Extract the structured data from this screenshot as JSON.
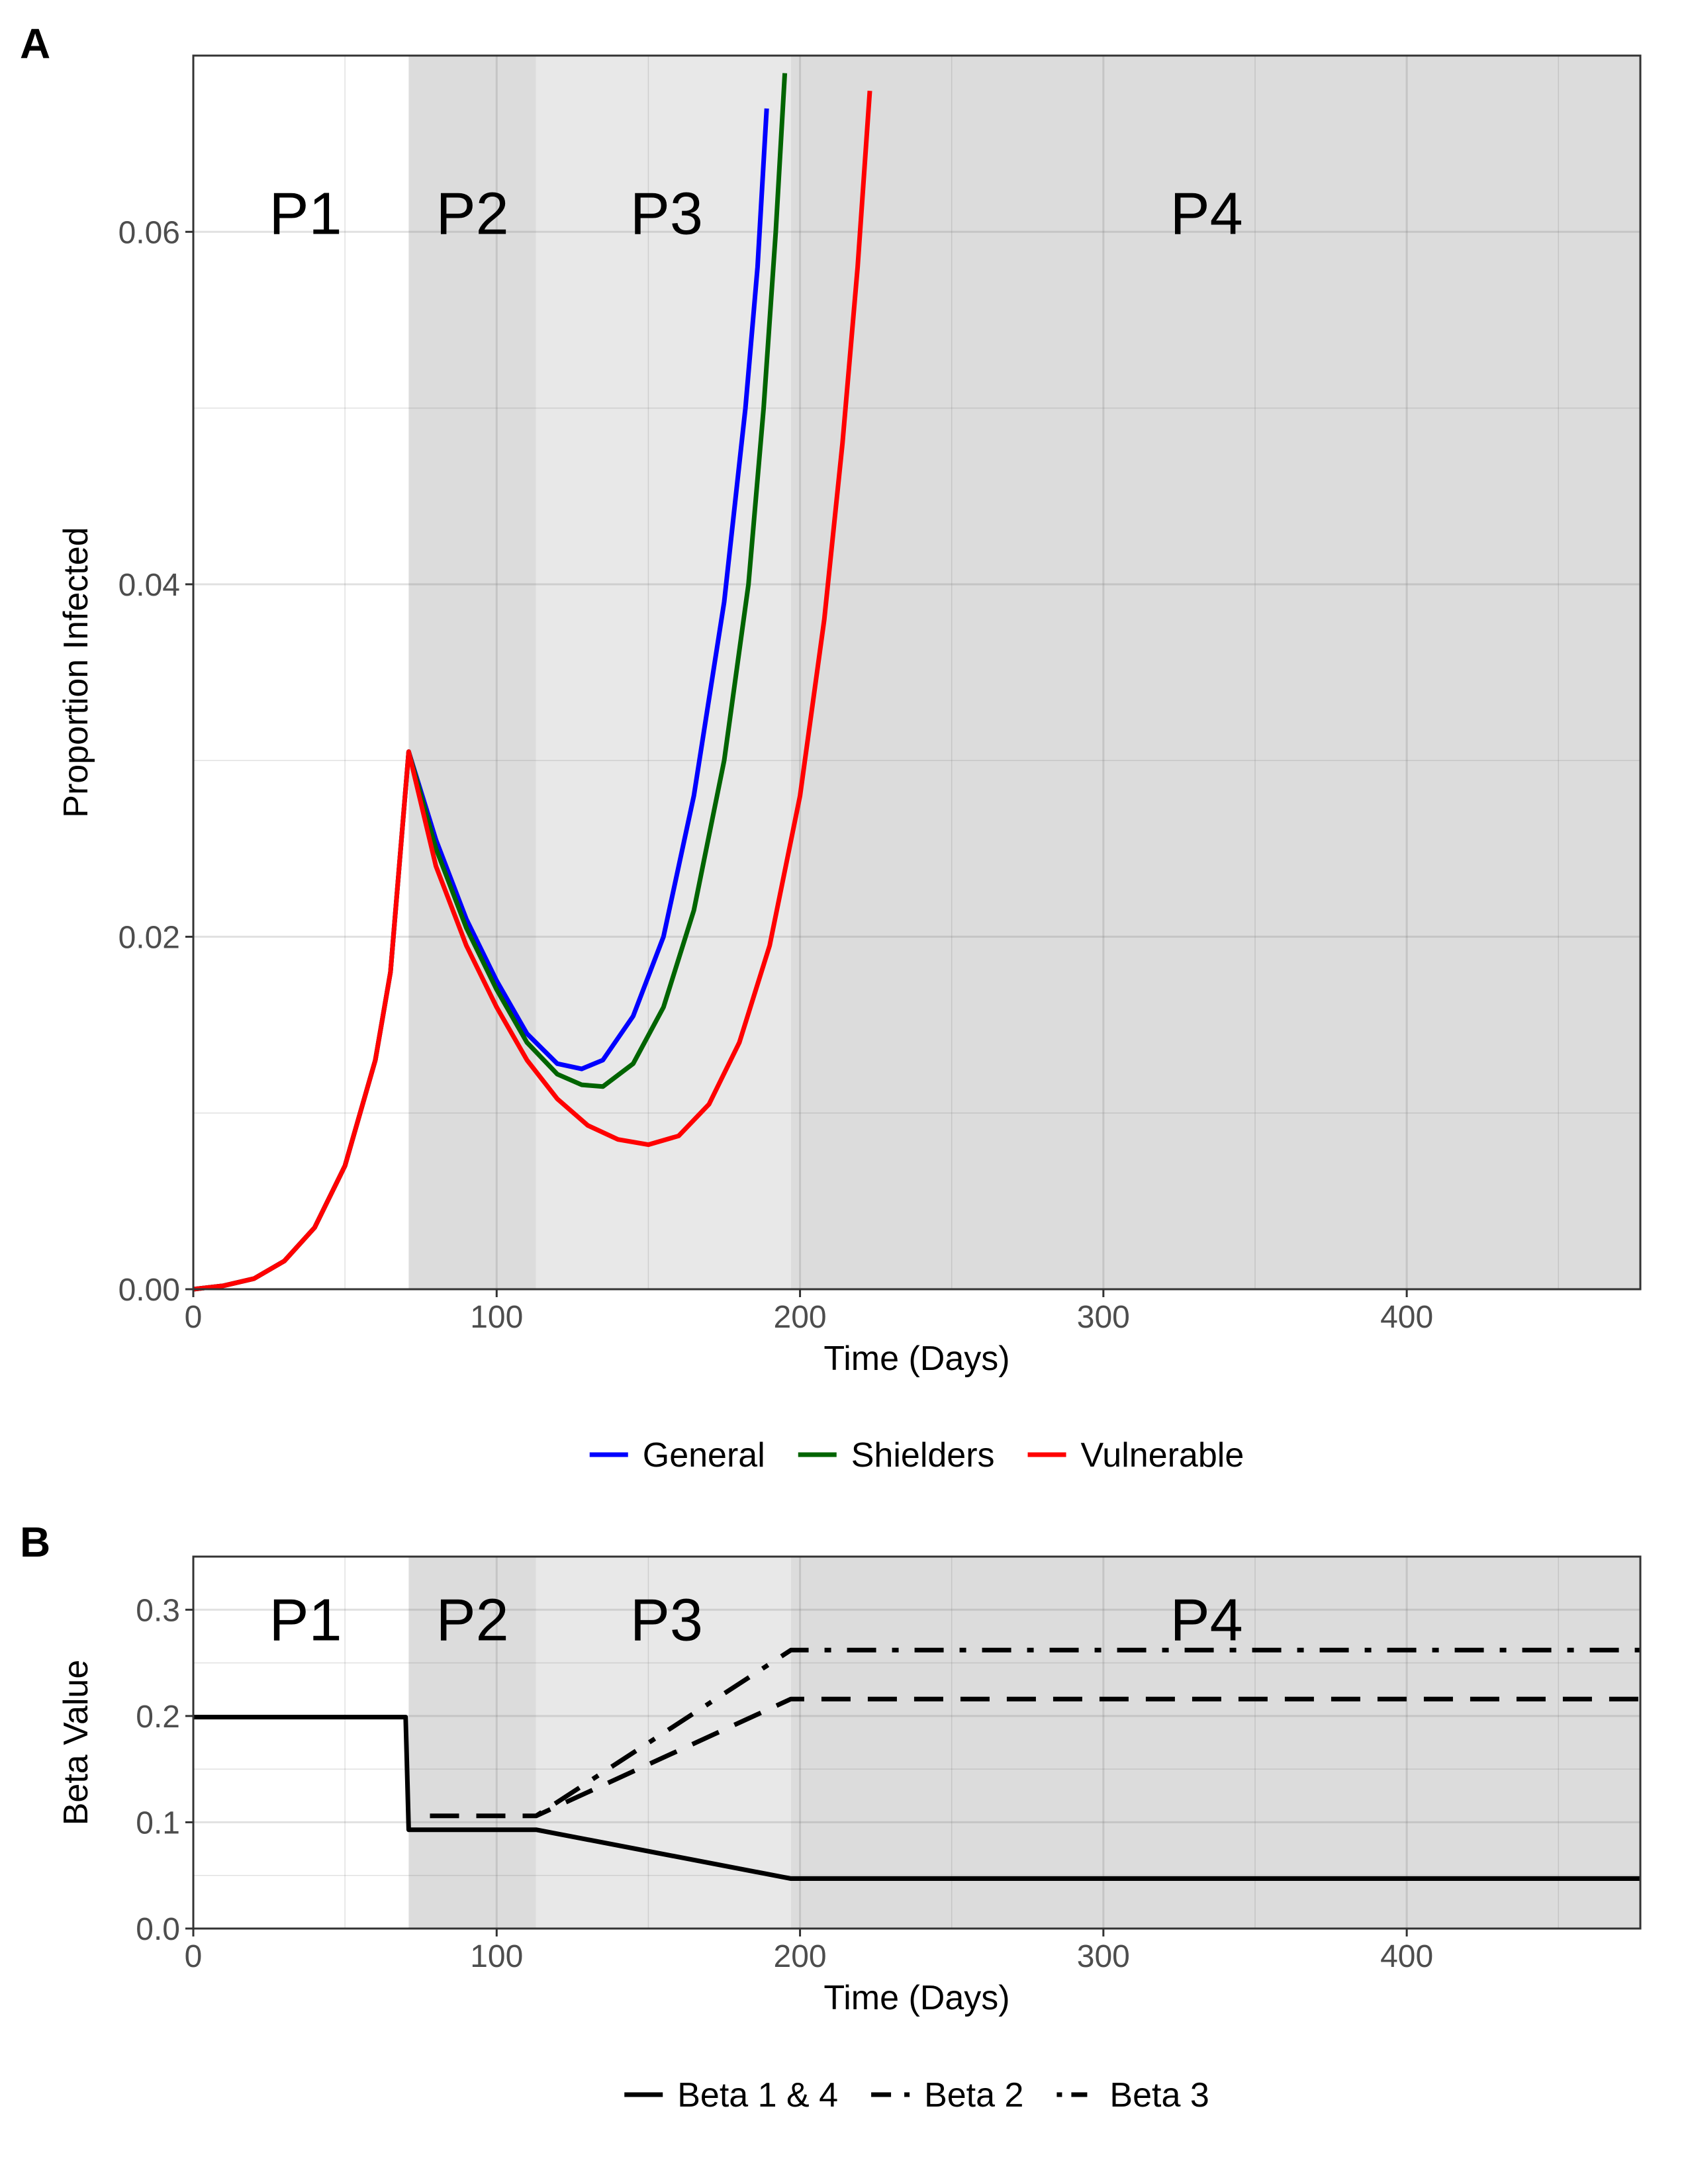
{
  "chart_data": [
    {
      "panel": "A",
      "type": "line",
      "xlabel": "Time (Days)",
      "ylabel": "Proportion Infected",
      "xlim": [
        0,
        477
      ],
      "ylim": [
        0,
        0.07
      ],
      "xticks": [
        0,
        100,
        200,
        300,
        400
      ],
      "yticks": [
        0,
        0.02,
        0.04,
        0.06
      ],
      "xtick_labels": [
        "0",
        "100",
        "200",
        "300",
        "400"
      ],
      "ytick_labels": [
        "0.00",
        "0.02",
        "0.04",
        "0.06"
      ],
      "grid": true,
      "legend_position": "bottom",
      "phases": [
        {
          "label": "P1",
          "start": 0,
          "end": 71,
          "fill": "#ffffff",
          "label_x": 37
        },
        {
          "label": "P2",
          "start": 71,
          "end": 113,
          "fill": "#dcdcdc",
          "label_x": 92
        },
        {
          "label": "P3",
          "start": 113,
          "end": 197,
          "fill": "#e8e8e8",
          "label_x": 156
        },
        {
          "label": "P4",
          "start": 197,
          "end": 477,
          "fill": "#dcdcdc",
          "label_x": 334
        }
      ],
      "phase_label_y": 0.061,
      "series": [
        {
          "name": "General",
          "color": "#0000ff",
          "points": [
            [
              0,
              0
            ],
            [
              10,
              0.0002
            ],
            [
              20,
              0.0006
            ],
            [
              30,
              0.0016
            ],
            [
              40,
              0.0035
            ],
            [
              50,
              0.007
            ],
            [
              60,
              0.013
            ],
            [
              65,
              0.018
            ],
            [
              71,
              0.0305
            ],
            [
              80,
              0.0255
            ],
            [
              90,
              0.021
            ],
            [
              100,
              0.0175
            ],
            [
              110,
              0.0145
            ],
            [
              120,
              0.0128
            ],
            [
              128,
              0.0125
            ],
            [
              135,
              0.013
            ],
            [
              145,
              0.0155
            ],
            [
              155,
              0.02
            ],
            [
              165,
              0.028
            ],
            [
              175,
              0.039
            ],
            [
              182,
              0.05
            ],
            [
              186,
              0.058
            ],
            [
              189,
              0.067
            ]
          ]
        },
        {
          "name": "Shielders",
          "color": "#006400",
          "points": [
            [
              0,
              0
            ],
            [
              10,
              0.0002
            ],
            [
              20,
              0.0006
            ],
            [
              30,
              0.0016
            ],
            [
              40,
              0.0035
            ],
            [
              50,
              0.007
            ],
            [
              60,
              0.013
            ],
            [
              65,
              0.018
            ],
            [
              71,
              0.0305
            ],
            [
              80,
              0.025
            ],
            [
              90,
              0.0205
            ],
            [
              100,
              0.017
            ],
            [
              110,
              0.014
            ],
            [
              120,
              0.0122
            ],
            [
              128,
              0.0116
            ],
            [
              135,
              0.0115
            ],
            [
              145,
              0.0128
            ],
            [
              155,
              0.016
            ],
            [
              165,
              0.0215
            ],
            [
              175,
              0.03
            ],
            [
              183,
              0.04
            ],
            [
              188,
              0.05
            ],
            [
              192,
              0.06
            ],
            [
              195,
              0.069
            ]
          ]
        },
        {
          "name": "Vulnerable",
          "color": "#ff0000",
          "points": [
            [
              0,
              0
            ],
            [
              10,
              0.0002
            ],
            [
              20,
              0.0006
            ],
            [
              30,
              0.0016
            ],
            [
              40,
              0.0035
            ],
            [
              50,
              0.007
            ],
            [
              60,
              0.013
            ],
            [
              65,
              0.018
            ],
            [
              71,
              0.0305
            ],
            [
              80,
              0.024
            ],
            [
              90,
              0.0195
            ],
            [
              100,
              0.016
            ],
            [
              110,
              0.013
            ],
            [
              120,
              0.0108
            ],
            [
              130,
              0.0093
            ],
            [
              140,
              0.0085
            ],
            [
              150,
              0.0082
            ],
            [
              160,
              0.0087
            ],
            [
              170,
              0.0105
            ],
            [
              180,
              0.014
            ],
            [
              190,
              0.0195
            ],
            [
              200,
              0.028
            ],
            [
              208,
              0.038
            ],
            [
              214,
              0.048
            ],
            [
              219,
              0.058
            ],
            [
              223,
              0.068
            ]
          ]
        }
      ]
    },
    {
      "panel": "B",
      "type": "line",
      "xlabel": "Time (Days)",
      "ylabel": "Beta Value",
      "xlim": [
        0,
        477
      ],
      "ylim": [
        0,
        0.35
      ],
      "xticks": [
        0,
        100,
        200,
        300,
        400
      ],
      "yticks": [
        0,
        0.1,
        0.2,
        0.3
      ],
      "xtick_labels": [
        "0",
        "100",
        "200",
        "300",
        "400"
      ],
      "ytick_labels": [
        "0.0",
        "0.1",
        "0.2",
        "0.3"
      ],
      "grid": true,
      "legend_position": "bottom",
      "phases": [
        {
          "label": "P1",
          "start": 0,
          "end": 71,
          "fill": "#ffffff",
          "label_x": 37
        },
        {
          "label": "P2",
          "start": 71,
          "end": 113,
          "fill": "#dcdcdc",
          "label_x": 92
        },
        {
          "label": "P3",
          "start": 113,
          "end": 197,
          "fill": "#e8e8e8",
          "label_x": 156
        },
        {
          "label": "P4",
          "start": 197,
          "end": 477,
          "fill": "#dcdcdc",
          "label_x": 334
        }
      ],
      "phase_label_y": 0.29,
      "series": [
        {
          "name": "Beta 1 & 4",
          "color": "#000000",
          "dash": "solid",
          "points": [
            [
              0,
              0.199
            ],
            [
              70,
              0.199
            ],
            [
              71,
              0.093
            ],
            [
              113,
              0.093
            ],
            [
              197,
              0.047
            ],
            [
              477,
              0.047
            ]
          ]
        },
        {
          "name": "Beta 2",
          "color": "#000000",
          "dash": "dashed",
          "points": [
            [
              78,
              0.106
            ],
            [
              113,
              0.106
            ],
            [
              197,
              0.216
            ],
            [
              477,
              0.216
            ]
          ]
        },
        {
          "name": "Beta 3",
          "color": "#000000",
          "dash": "dotdash",
          "points": [
            [
              113,
              0.106
            ],
            [
              197,
              0.262
            ],
            [
              477,
              0.262
            ]
          ]
        }
      ]
    }
  ]
}
